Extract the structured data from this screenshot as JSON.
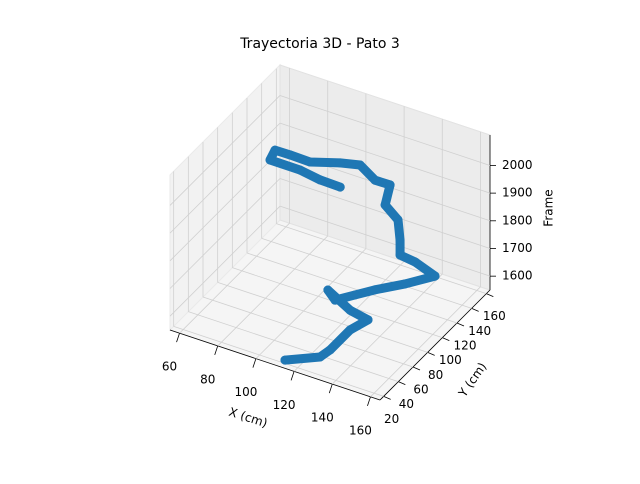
{
  "chart_data": {
    "type": "scatter3d",
    "title": "Trayectoria 3D - Pato 3",
    "xlabel": "X (cm)",
    "ylabel": "Y (cm)",
    "zlabel": "Frame",
    "color": "#1f77b4",
    "grid": true,
    "xlim": [
      55,
      165
    ],
    "ylim": [
      15,
      165
    ],
    "zlim": [
      1550,
      2110
    ],
    "xticks": [
      60,
      80,
      100,
      120,
      140,
      160
    ],
    "yticks": [
      20,
      40,
      60,
      80,
      100,
      120,
      140,
      160
    ],
    "zticks": [
      1600,
      1700,
      1800,
      1900,
      2000
    ],
    "x": [
      113.2,
      127.6,
      130.6,
      133.0,
      138.6,
      129.5,
      114.7,
      122.7,
      129.8,
      136.8,
      147.5,
      157.4,
      146.4,
      140.3,
      137.4,
      131.8,
      123.9,
      121.0,
      115.6,
      106.3,
      100.0,
      90.3,
      82.1,
      76.7,
      79.9,
      96.8,
      109.8,
      121.7
    ],
    "y": [
      20.3,
      30.6,
      36.5,
      57.5,
      67.4,
      66.6,
      74.9,
      63.9,
      72.6,
      81.5,
      94.7,
      109.8,
      111.0,
      106.7,
      114.2,
      126.0,
      129.0,
      143.3,
      136.8,
      140.7,
      129.8,
      114.0,
      108.2,
      101.7,
      86.6,
      83.4,
      77.0,
      73.4
    ],
    "z": [
      1561,
      1578,
      1595,
      1617,
      1640,
      1656,
      1673,
      1684,
      1696,
      1707,
      1718,
      1729,
      1752,
      1774,
      1802,
      1830,
      1858,
      1886,
      1908,
      1931,
      1953,
      1976,
      1998,
      2020,
      2032,
      2043,
      2054,
      2065
    ]
  }
}
